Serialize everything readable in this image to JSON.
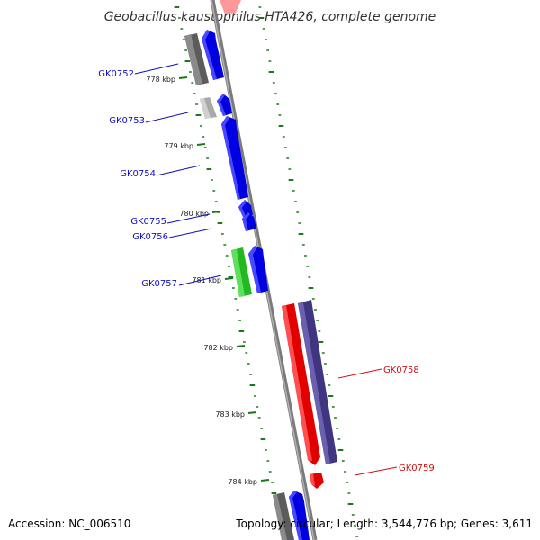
{
  "title": "Geobacillus kaustophilus HTA426, complete genome",
  "accession": "Accession: NC_006510",
  "topology": "Topology: circular; Length: 3,544,776 bp; Genes: 3,611",
  "colors": {
    "backbone": "#808080",
    "gc_marks": "#1a7a1a",
    "forward_gene": "#0000ee",
    "reverse_gene": "#ee0000",
    "forward_label": "#1010c0",
    "reverse_label": "#d01010",
    "gray_gene": "#6e6e6e",
    "lightgray_gene": "#b8b8b8",
    "green_gene": "#33cc33",
    "purple_gene": "#4b3f8c"
  },
  "ticks": [
    "778 kbp",
    "779 kbp",
    "780 kbp",
    "781 kbp",
    "782 kbp",
    "783 kbp",
    "784 kbp"
  ],
  "genes": [
    {
      "name": "GK0752",
      "strand": "forward"
    },
    {
      "name": "GK0753",
      "strand": "forward"
    },
    {
      "name": "GK0754",
      "strand": "forward"
    },
    {
      "name": "GK0755",
      "strand": "forward"
    },
    {
      "name": "GK0756",
      "strand": "forward"
    },
    {
      "name": "GK0757",
      "strand": "forward"
    },
    {
      "name": "GK0758",
      "strand": "reverse"
    },
    {
      "name": "GK0759",
      "strand": "reverse"
    }
  ]
}
